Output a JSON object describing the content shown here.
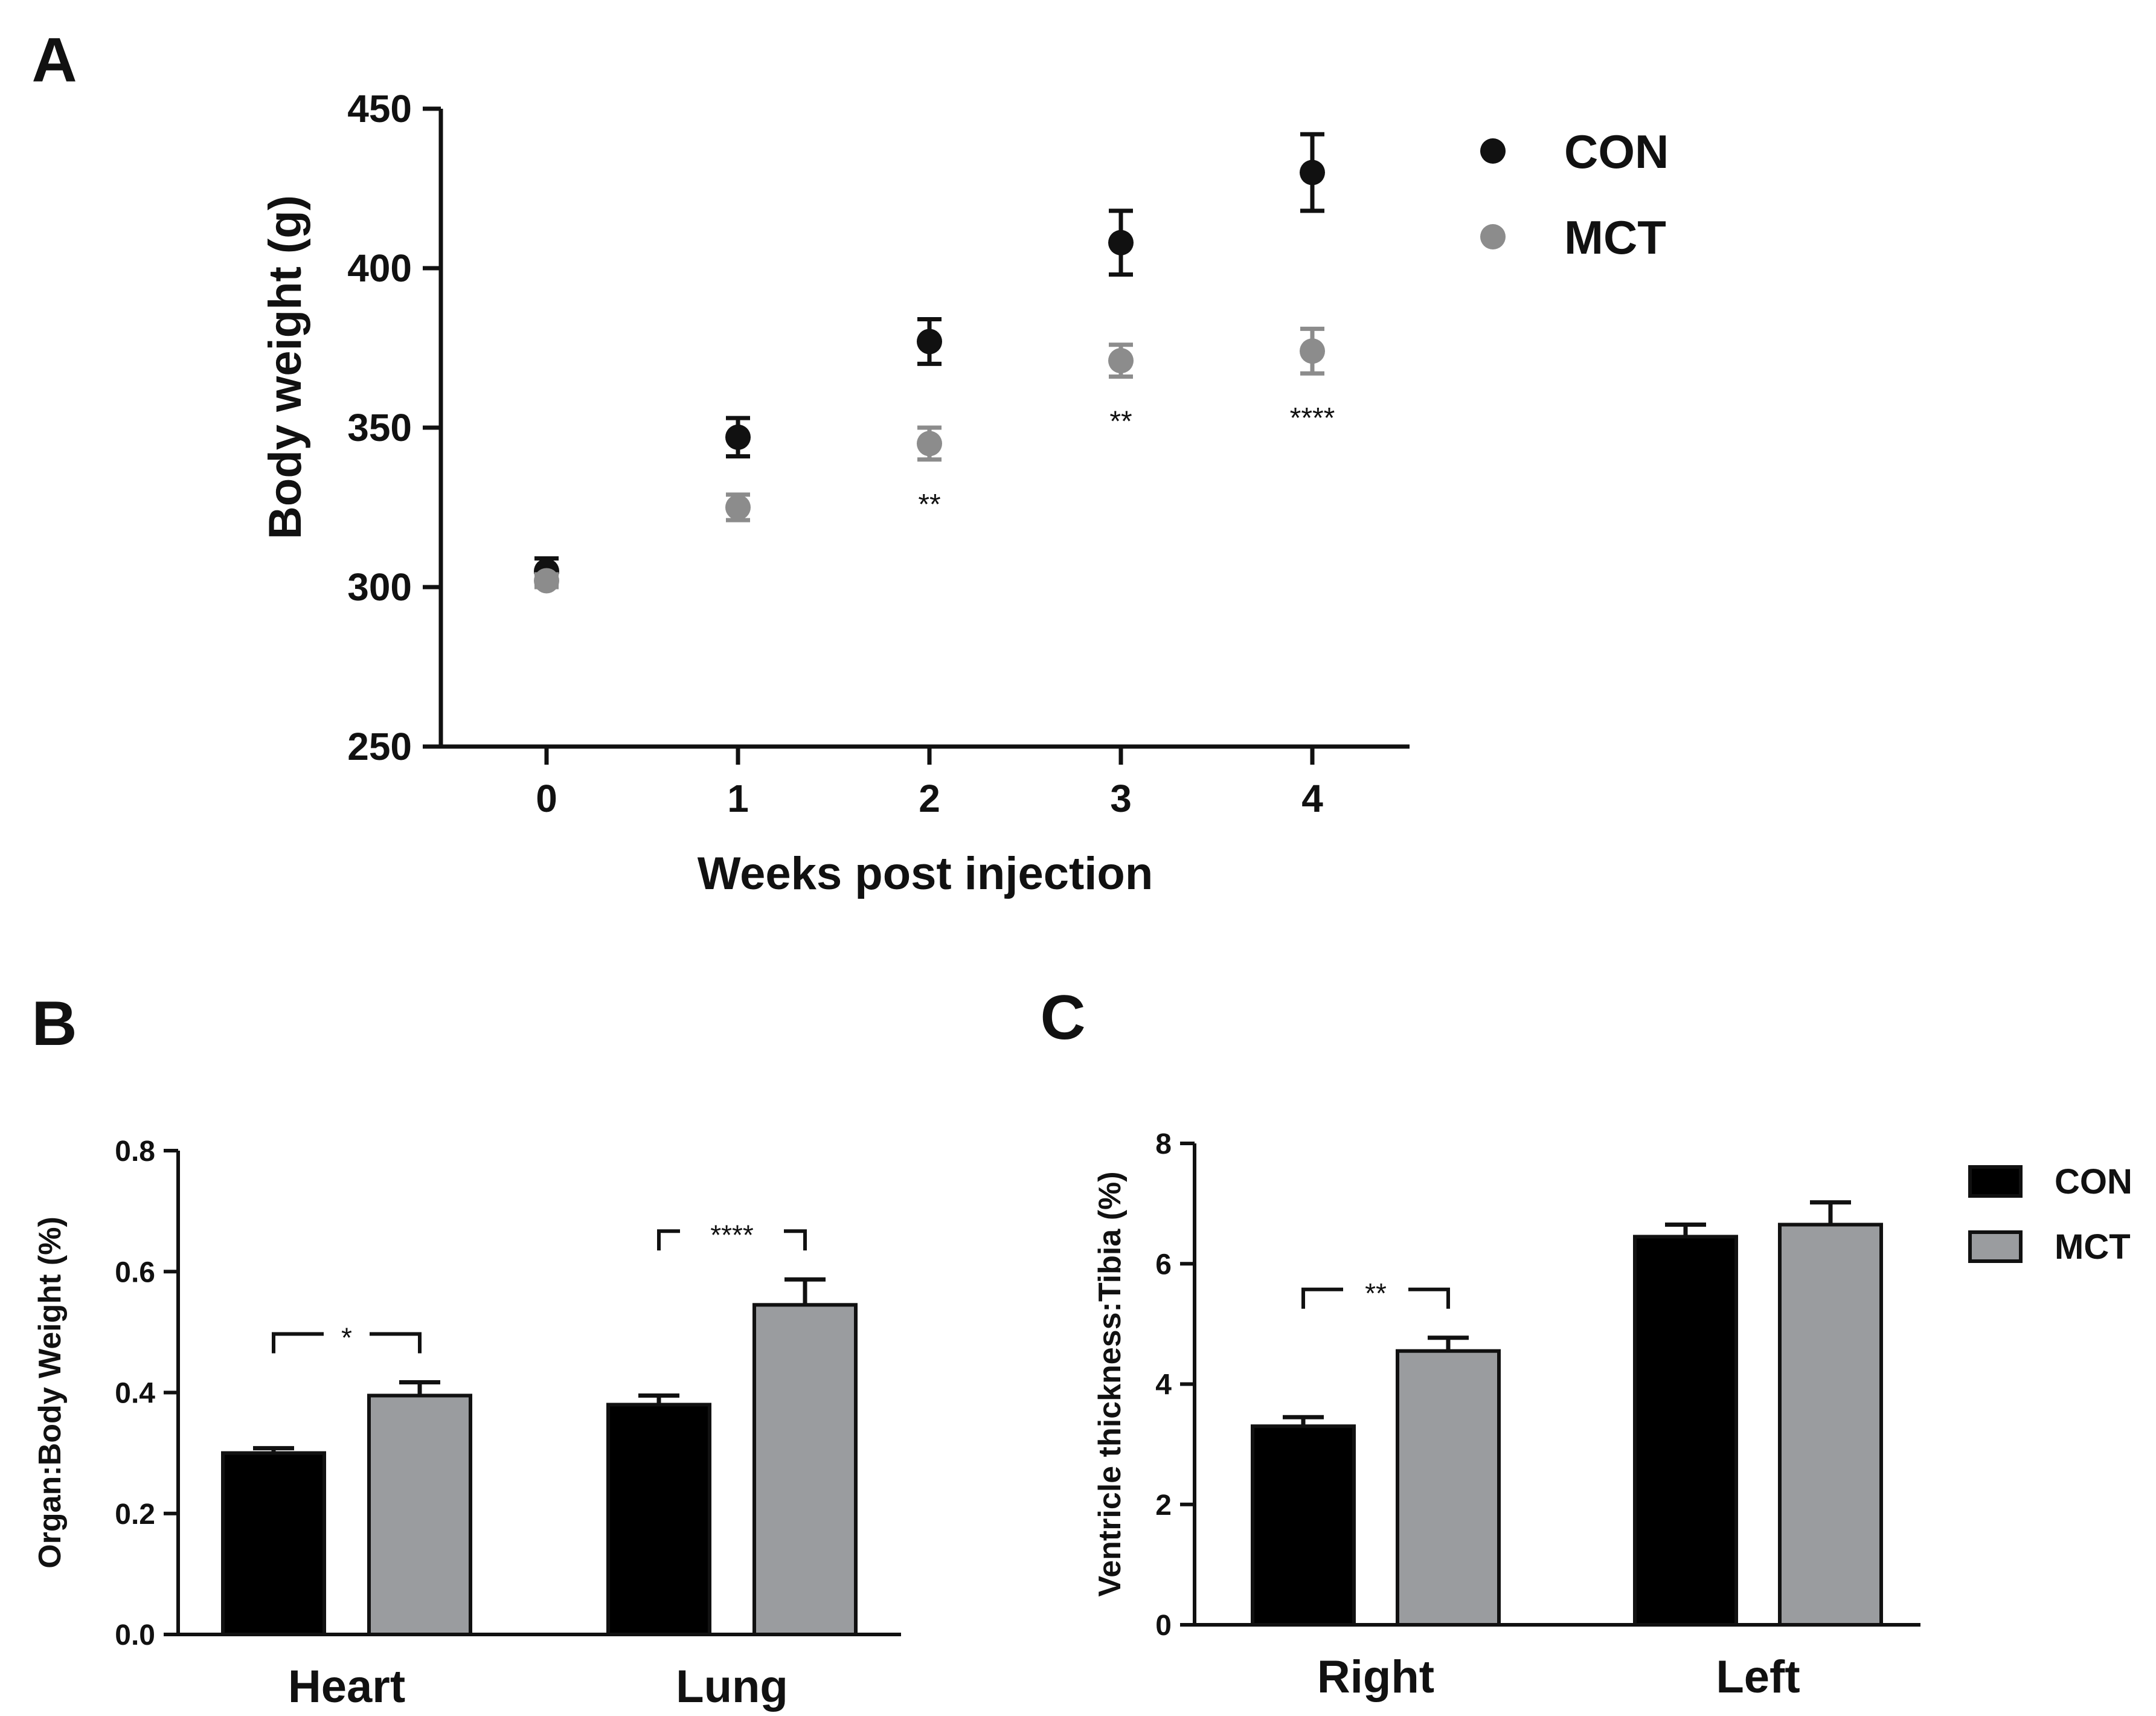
{
  "chart_data": [
    {
      "panel": "A",
      "type": "scatter",
      "xlabel": "Weeks post injection",
      "ylabel": "Body weight (g)",
      "ylim": [
        250,
        450
      ],
      "yticks": [
        250,
        300,
        350,
        400,
        450
      ],
      "x": [
        0,
        1,
        2,
        3,
        4
      ],
      "legend": [
        "CON",
        "MCT"
      ],
      "legend_position": "top-right",
      "series": [
        {
          "name": "CON",
          "color": "#111111",
          "values": [
            305,
            347,
            377,
            408,
            430
          ],
          "errors": [
            4,
            6,
            7,
            10,
            12
          ]
        },
        {
          "name": "MCT",
          "color": "#8c8c8c",
          "values": [
            302,
            325,
            345,
            371,
            374
          ],
          "errors": [
            2,
            4,
            5,
            5,
            7
          ]
        }
      ],
      "annotations": [
        {
          "x": 2,
          "text": "**"
        },
        {
          "x": 3,
          "text": "**"
        },
        {
          "x": 4,
          "text": "****"
        }
      ]
    },
    {
      "panel": "B",
      "type": "bar",
      "ylabel": "Organ:Body  Weight  (%)",
      "ylim": [
        0,
        0.8
      ],
      "yticks": [
        "0.0",
        "0.2",
        "0.4",
        "0.6",
        "0.8"
      ],
      "categories": [
        "Heart",
        "Lung"
      ],
      "series": [
        {
          "name": "CON",
          "color": "#000000",
          "values": [
            0.3,
            0.38
          ],
          "errors": [
            0.008,
            0.015
          ]
        },
        {
          "name": "MCT",
          "color": "#9a9c9f",
          "values": [
            0.395,
            0.545
          ],
          "errors": [
            0.022,
            0.042
          ]
        }
      ],
      "annotations": [
        {
          "category": "Heart",
          "text": "*"
        },
        {
          "category": "Lung",
          "text": "****"
        }
      ]
    },
    {
      "panel": "C",
      "type": "bar",
      "ylabel": "Ventricle thickness:Tibia (%)",
      "ylim": [
        0,
        8
      ],
      "yticks": [
        "0",
        "2",
        "4",
        "6",
        "8"
      ],
      "categories": [
        "Right",
        "Left"
      ],
      "legend": [
        "CON",
        "MCT"
      ],
      "legend_position": "top-right",
      "series": [
        {
          "name": "CON",
          "color": "#000000",
          "values": [
            3.3,
            6.45
          ],
          "errors": [
            0.15,
            0.2
          ]
        },
        {
          "name": "MCT",
          "color": "#9a9c9f",
          "values": [
            4.55,
            6.65
          ],
          "errors": [
            0.22,
            0.37
          ]
        }
      ],
      "annotations": [
        {
          "category": "Right",
          "text": "**"
        }
      ]
    }
  ]
}
